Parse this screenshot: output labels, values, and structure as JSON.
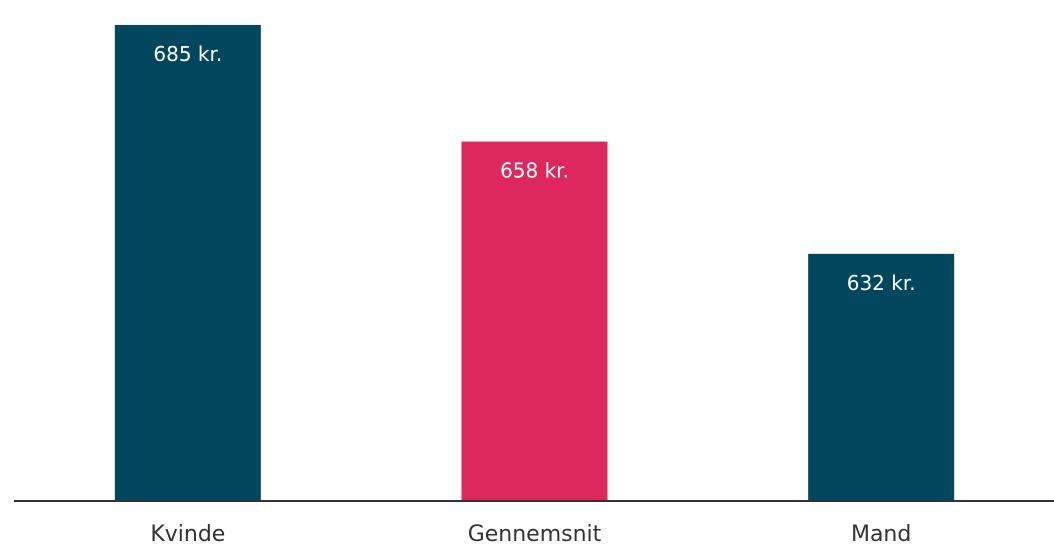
{
  "chart_data": {
    "type": "bar",
    "categories": [
      "Kvinde",
      "Gennemsnit",
      "Mand"
    ],
    "values": [
      685,
      658,
      632
    ],
    "value_labels": [
      "685 kr.",
      "658 kr.",
      "632 kr."
    ],
    "colors": [
      "#02475e",
      "#dc285d",
      "#02475e"
    ],
    "axis_color": "#333333",
    "label_color": "#ffffff",
    "ylim": [
      575,
      688
    ],
    "grid": false,
    "legend": "none"
  }
}
